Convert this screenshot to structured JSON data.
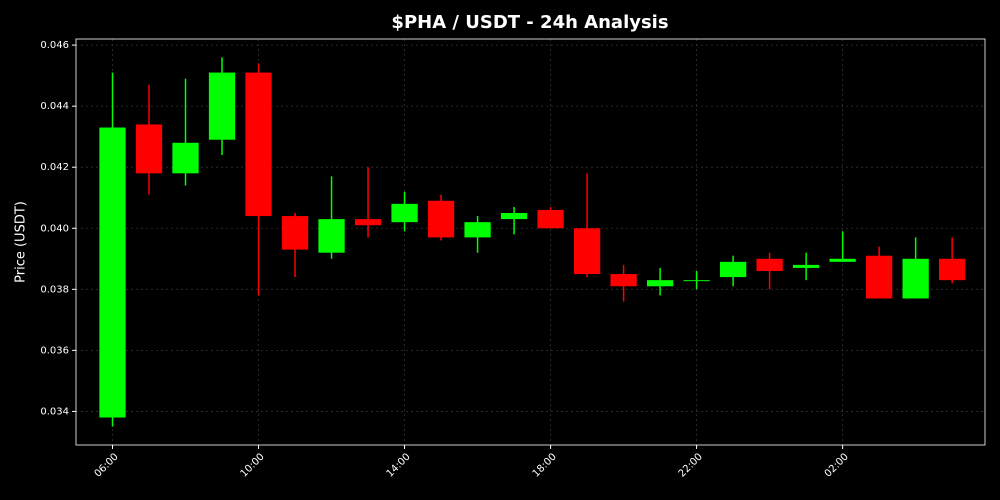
{
  "chart_data": {
    "type": "candlestick",
    "title": "$PHA / USDT - 24h Analysis",
    "y_label": "Price (USDT)",
    "x": [
      6,
      7,
      8,
      9,
      10,
      11,
      12,
      13,
      14,
      15,
      16,
      17,
      18,
      19,
      20,
      21,
      22,
      23,
      24,
      25,
      26,
      27,
      28,
      29
    ],
    "open": [
      0.0338,
      0.0434,
      0.0418,
      0.0429,
      0.0451,
      0.0404,
      0.0392,
      0.0403,
      0.0402,
      0.0409,
      0.0397,
      0.0403,
      0.0406,
      0.04,
      0.0385,
      0.0381,
      0.0383,
      0.0384,
      0.039,
      0.0387,
      0.0389,
      0.0391,
      0.0377,
      0.039
    ],
    "high": [
      0.0451,
      0.0447,
      0.0449,
      0.0456,
      0.0454,
      0.0405,
      0.0417,
      0.042,
      0.0412,
      0.0411,
      0.0404,
      0.0407,
      0.0407,
      0.0418,
      0.0388,
      0.0387,
      0.0386,
      0.0391,
      0.0392,
      0.0392,
      0.0399,
      0.0394,
      0.0397,
      0.0397
    ],
    "low": [
      0.0335,
      0.0411,
      0.0414,
      0.0424,
      0.0378,
      0.0384,
      0.039,
      0.0397,
      0.0399,
      0.0396,
      0.0392,
      0.0398,
      0.04,
      0.0384,
      0.0376,
      0.0378,
      0.038,
      0.0381,
      0.038,
      0.0383,
      0.0389,
      0.0377,
      0.0377,
      0.0382
    ],
    "close": [
      0.0433,
      0.0418,
      0.0428,
      0.0451,
      0.0404,
      0.0393,
      0.0403,
      0.0401,
      0.0408,
      0.0397,
      0.0402,
      0.0405,
      0.04,
      0.0385,
      0.0381,
      0.0383,
      0.0383,
      0.0389,
      0.0386,
      0.0388,
      0.039,
      0.0377,
      0.039,
      0.0383
    ],
    "up_color": "#00ff00",
    "down_color": "#ff0000",
    "xlim": [
      5.0,
      29.9
    ],
    "xticks": [
      {
        "value": 6,
        "label": "06:00"
      },
      {
        "value": 10,
        "label": "10:00"
      },
      {
        "value": 14,
        "label": "14:00"
      },
      {
        "value": 18,
        "label": "18:00"
      },
      {
        "value": 22,
        "label": "22:00"
      },
      {
        "value": 26,
        "label": "02:00"
      }
    ],
    "ylim": [
      0.0329,
      0.0462
    ],
    "yticks": [
      0.034,
      0.036,
      0.038,
      {
        "value": 0.04,
        "label": "0.040"
      },
      0.042,
      0.044,
      0.046
    ],
    "grid": true
  }
}
